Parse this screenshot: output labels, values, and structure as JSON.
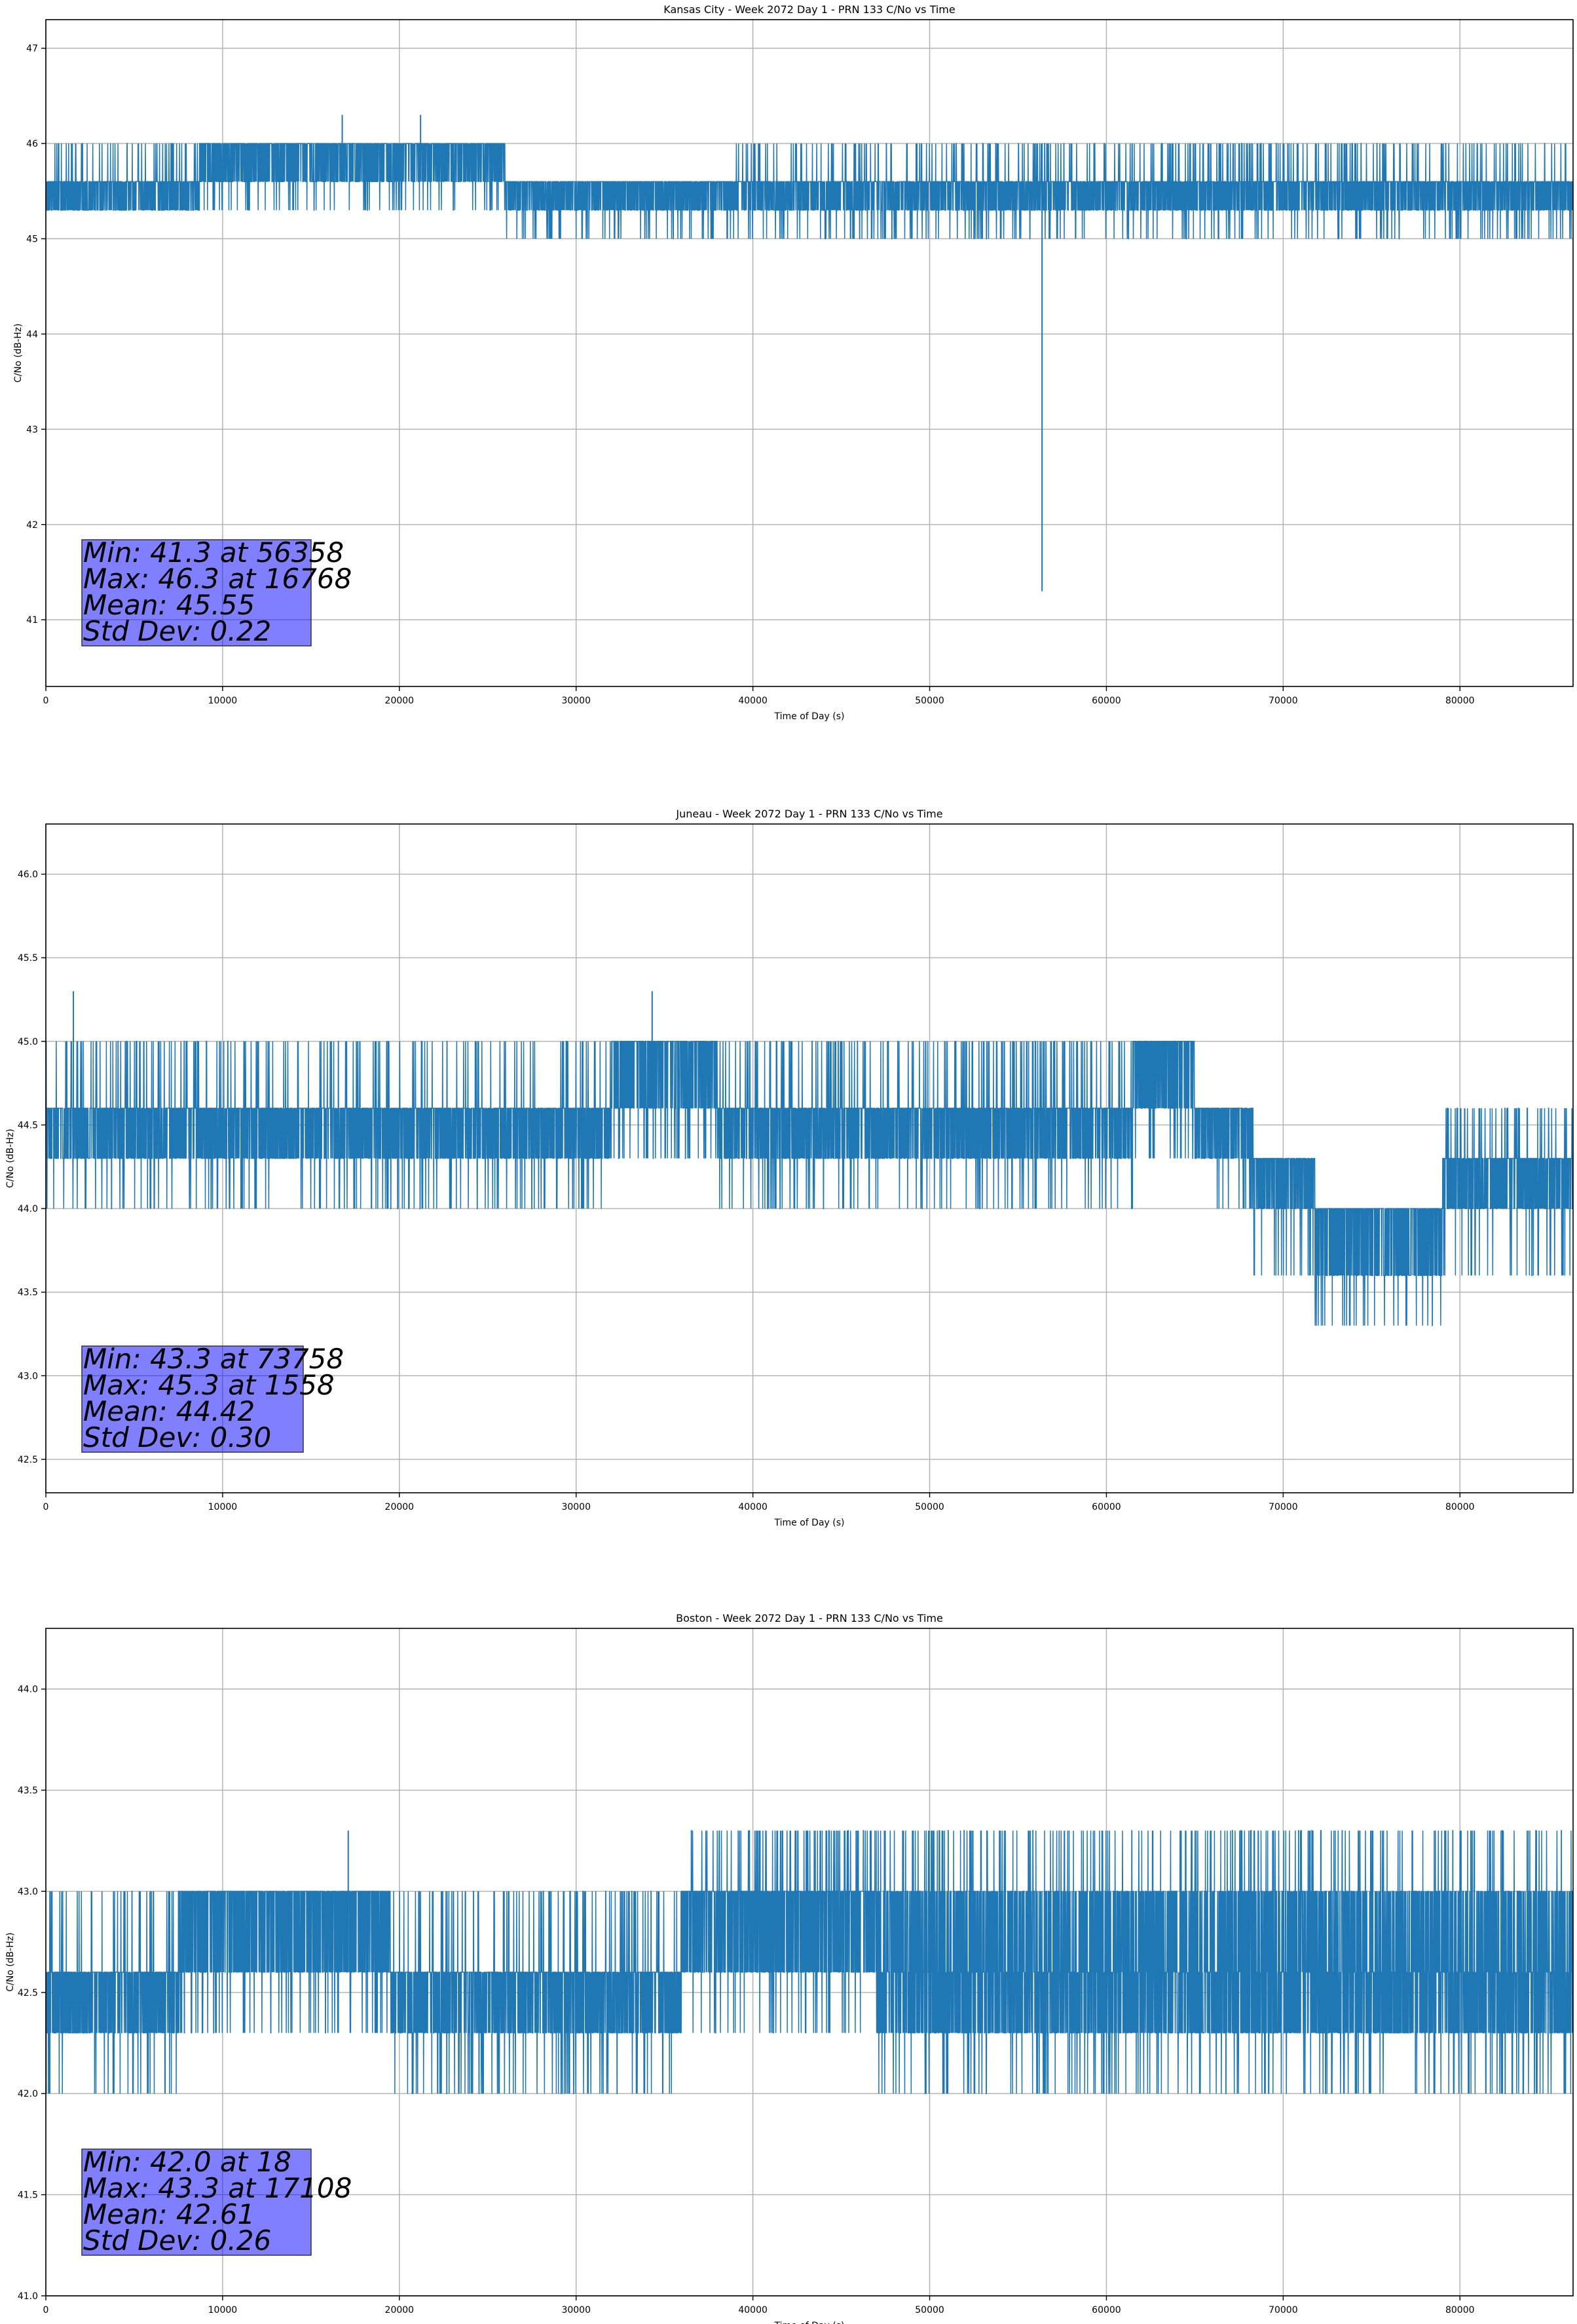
{
  "chart_data": [
    {
      "type": "line",
      "title": "Kansas City - Week 2072 Day 1 - PRN 133 C/No vs Time",
      "xlabel": "Time of Day (s)",
      "ylabel": "C/No (dB-Hz)",
      "xlim": [
        0,
        86400
      ],
      "ylim": [
        40.3,
        47.3
      ],
      "xticks": [
        0,
        10000,
        20000,
        30000,
        40000,
        50000,
        60000,
        70000,
        80000
      ],
      "yticks": [
        41,
        42,
        43,
        44,
        45,
        46,
        47
      ],
      "ytick_labels": [
        "41",
        "42",
        "43",
        "44",
        "45",
        "46",
        "47"
      ],
      "grid": true,
      "color": "#1f77b4",
      "series": [
        {
          "name": "C/No",
          "segments": [
            {
              "x0": 0,
              "x1": 8700,
              "base": 45.3,
              "levels": [
                45.6
              ],
              "hi": 46.0,
              "lo": 45.3
            },
            {
              "x0": 8700,
              "x1": 26000,
              "base": 45.6,
              "levels": [
                46.0
              ],
              "hi": 46.0,
              "lo": 45.3
            },
            {
              "x0": 26000,
              "x1": 39000,
              "base": 45.3,
              "levels": [
                45.6
              ],
              "hi": 45.6,
              "lo": 45.0
            },
            {
              "x0": 39000,
              "x1": 50000,
              "base": 45.3,
              "levels": [
                45.6
              ],
              "hi": 46.0,
              "lo": 45.0
            },
            {
              "x0": 50000,
              "x1": 70000,
              "base": 45.3,
              "levels": [
                45.6
              ],
              "hi": 46.0,
              "lo": 45.0
            },
            {
              "x0": 70000,
              "x1": 86400,
              "base": 45.3,
              "levels": [
                45.6
              ],
              "hi": 46.0,
              "lo": 45.0
            }
          ],
          "spikes": [
            [
              16768,
              46.3
            ],
            [
              21200,
              46.3
            ],
            [
              56358,
              41.3
            ]
          ]
        }
      ],
      "stats": {
        "min": "Min: 41.3 at 56358",
        "max": "Max: 46.3 at 16768",
        "mean": "Mean: 45.55",
        "std": "Std Dev: 0.22"
      }
    },
    {
      "type": "line",
      "title": "Juneau - Week 2072 Day 1 - PRN 133 C/No vs Time",
      "xlabel": "Time of Day (s)",
      "ylabel": "C/No (dB-Hz)",
      "xlim": [
        0,
        86400
      ],
      "ylim": [
        42.3,
        46.3
      ],
      "xticks": [
        0,
        10000,
        20000,
        30000,
        40000,
        50000,
        60000,
        70000,
        80000
      ],
      "yticks": [
        42.5,
        43.0,
        43.5,
        44.0,
        44.5,
        45.0,
        45.5,
        46.0
      ],
      "ytick_labels": [
        "42.5",
        "43.0",
        "43.5",
        "44.0",
        "44.5",
        "45.0",
        "45.5",
        "46.0"
      ],
      "grid": true,
      "color": "#1f77b4",
      "series": [
        {
          "name": "C/No",
          "segments": [
            {
              "x0": 0,
              "x1": 32000,
              "base": 44.3,
              "levels": [
                44.6
              ],
              "hi": 45.0,
              "lo": 44.0
            },
            {
              "x0": 32000,
              "x1": 38000,
              "base": 44.6,
              "levels": [
                45.0
              ],
              "hi": 45.0,
              "lo": 44.3
            },
            {
              "x0": 38000,
              "x1": 47500,
              "base": 44.3,
              "levels": [
                44.6
              ],
              "hi": 45.0,
              "lo": 44.0
            },
            {
              "x0": 47500,
              "x1": 61500,
              "base": 44.3,
              "levels": [
                44.6
              ],
              "hi": 45.0,
              "lo": 44.0
            },
            {
              "x0": 61500,
              "x1": 65000,
              "base": 44.6,
              "levels": [
                45.0
              ],
              "hi": 45.0,
              "lo": 44.3
            },
            {
              "x0": 65000,
              "x1": 68300,
              "base": 44.3,
              "levels": [
                44.6
              ],
              "hi": 44.6,
              "lo": 44.0
            },
            {
              "x0": 68300,
              "x1": 71800,
              "base": 44.0,
              "levels": [
                44.3
              ],
              "hi": 44.3,
              "lo": 43.6
            },
            {
              "x0": 71800,
              "x1": 79000,
              "base": 43.6,
              "levels": [
                44.0
              ],
              "hi": 44.0,
              "lo": 43.3
            },
            {
              "x0": 79000,
              "x1": 86400,
              "base": 44.0,
              "levels": [
                44.3
              ],
              "hi": 44.6,
              "lo": 43.6
            }
          ],
          "spikes": [
            [
              1558,
              45.3
            ],
            [
              34300,
              45.3
            ],
            [
              73758,
              43.3
            ]
          ]
        }
      ],
      "stats": {
        "min": "Min: 43.3 at 73758",
        "max": "Max: 45.3 at 1558",
        "mean": "Mean: 44.42",
        "std": "Std Dev: 0.30"
      }
    },
    {
      "type": "line",
      "title": "Boston - Week 2072 Day 1 - PRN 133 C/No vs Time",
      "xlabel": "Time of Day (s)",
      "ylabel": "C/No (dB-Hz)",
      "xlim": [
        0,
        86400
      ],
      "ylim": [
        41.0,
        44.3
      ],
      "xticks": [
        0,
        10000,
        20000,
        30000,
        40000,
        50000,
        60000,
        70000,
        80000
      ],
      "yticks": [
        41.0,
        41.5,
        42.0,
        42.5,
        43.0,
        43.5,
        44.0
      ],
      "ytick_labels": [
        "41.0",
        "41.5",
        "42.0",
        "42.5",
        "43.0",
        "43.5",
        "44.0"
      ],
      "grid": true,
      "color": "#1f77b4",
      "series": [
        {
          "name": "C/No",
          "segments": [
            {
              "x0": 0,
              "x1": 7500,
              "base": 42.3,
              "levels": [
                42.6
              ],
              "hi": 43.0,
              "lo": 42.0
            },
            {
              "x0": 7500,
              "x1": 19500,
              "base": 42.6,
              "levels": [
                43.0
              ],
              "hi": 43.0,
              "lo": 42.3
            },
            {
              "x0": 19500,
              "x1": 36000,
              "base": 42.3,
              "levels": [
                42.6
              ],
              "hi": 43.0,
              "lo": 42.0
            },
            {
              "x0": 36000,
              "x1": 47000,
              "base": 42.6,
              "levels": [
                43.0
              ],
              "hi": 43.3,
              "lo": 42.3
            },
            {
              "x0": 47000,
              "x1": 86400,
              "base": 42.3,
              "levels": [
                42.6,
                43.0
              ],
              "hi": 43.3,
              "lo": 42.0
            }
          ],
          "spikes": [
            [
              17108,
              43.3
            ],
            [
              18,
              42.0
            ]
          ]
        }
      ],
      "stats": {
        "min": "Min: 42.0 at 18",
        "max": "Max: 43.3 at 17108",
        "mean": "Mean: 42.61",
        "std": "Std Dev: 0.26"
      }
    }
  ]
}
